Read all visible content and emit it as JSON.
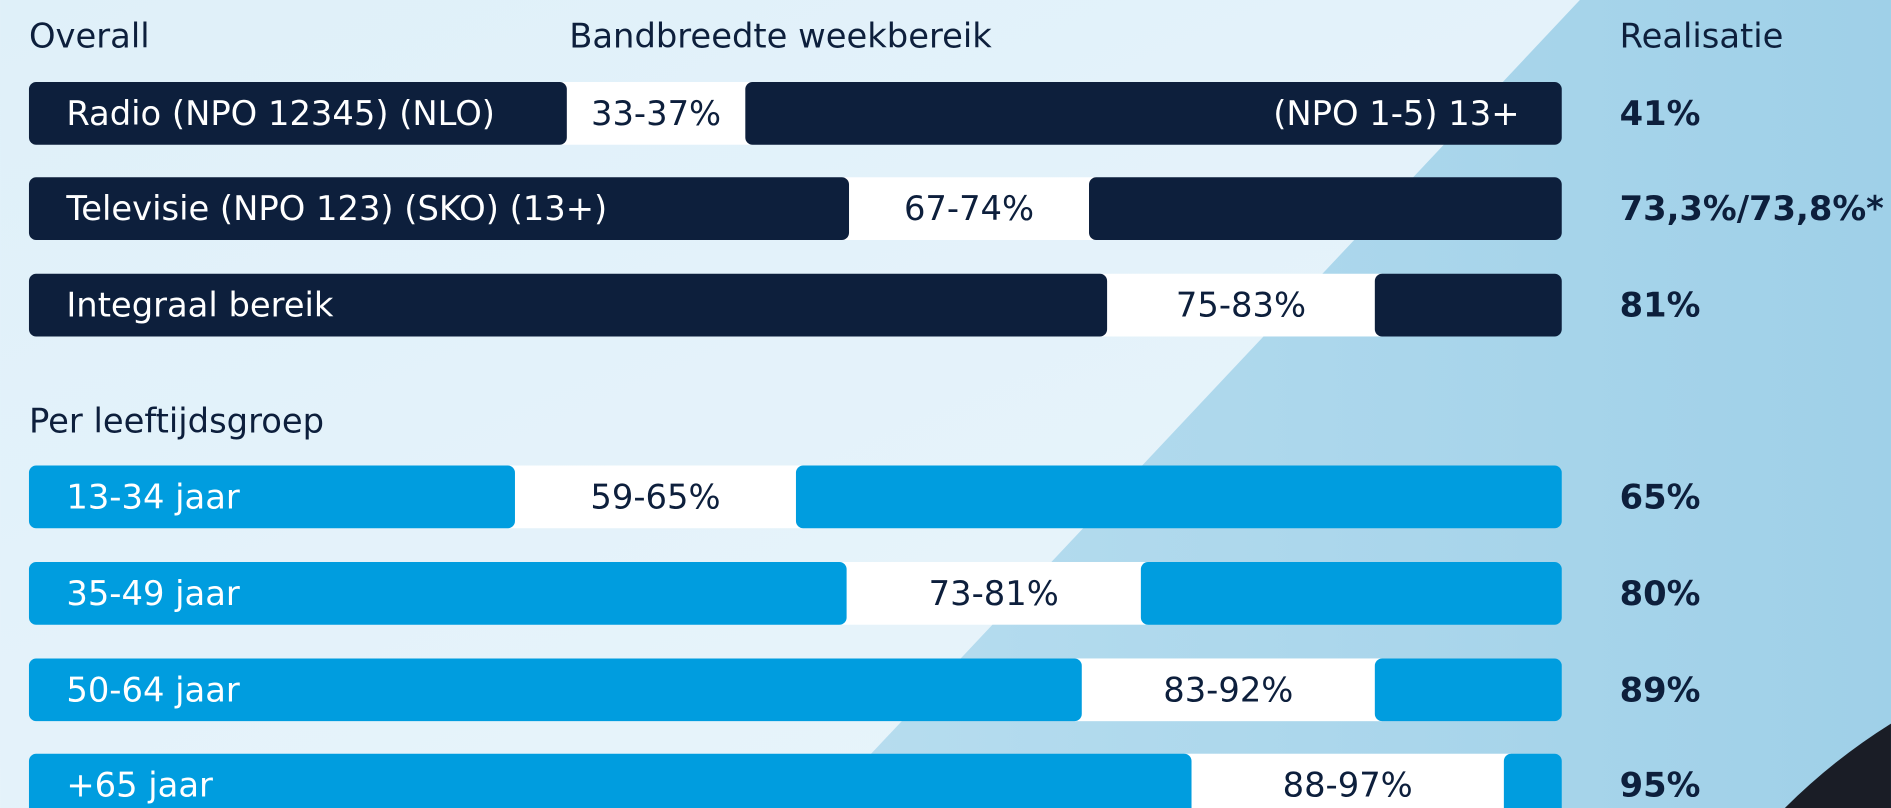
{
  "header": {
    "overall": "Overall",
    "band": "Bandbreedte weekbereik",
    "realisatie": "Realisatie"
  },
  "overall_rows": [
    {
      "label": "Radio (NPO 12345) (NLO)",
      "band": "33-37%",
      "note": "(NPO 1-5) 13+",
      "realisatie": "41%"
    },
    {
      "label": "Televisie (NPO 123) (SKO) (13+)",
      "band": "67-74%",
      "realisatie": "73,3%/73,8%*"
    },
    {
      "label": "Integraal bereik",
      "band": "75-83%",
      "realisatie": "81%"
    }
  ],
  "section": "Per leeftijdsgroep",
  "age_rows": [
    {
      "label": "13-34 jaar",
      "band": "59-65%",
      "realisatie": "65%"
    },
    {
      "label": "35-49 jaar",
      "band": "73-81%",
      "realisatie": "80%"
    },
    {
      "label": "50-64 jaar",
      "band": "83-92%",
      "realisatie": "89%"
    },
    {
      "label": "+65 jaar",
      "band": "88-97%",
      "realisatie": "95%"
    }
  ]
}
